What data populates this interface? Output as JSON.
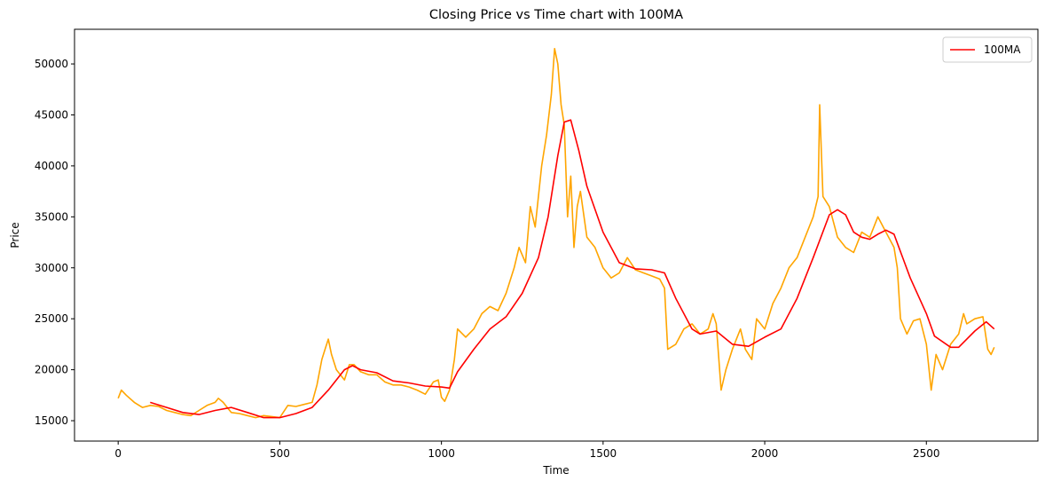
{
  "chart_data": {
    "type": "line",
    "title": "Closing Price vs Time chart with 100MA",
    "xlabel": "Time",
    "ylabel": "Price",
    "xlim": [
      -135,
      2845
    ],
    "ylim": [
      13000,
      53400
    ],
    "xticks": [
      0,
      500,
      1000,
      1500,
      2000,
      2500
    ],
    "yticks": [
      15000,
      20000,
      25000,
      30000,
      35000,
      40000,
      45000,
      50000
    ],
    "grid": false,
    "legend": "upper right",
    "series": [
      {
        "color": "#ffa500",
        "x": [
          0,
          10,
          25,
          50,
          75,
          100,
          125,
          150,
          175,
          200,
          225,
          250,
          275,
          300,
          310,
          325,
          350,
          375,
          400,
          425,
          450,
          475,
          500,
          525,
          550,
          575,
          600,
          615,
          630,
          640,
          650,
          660,
          675,
          700,
          715,
          730,
          750,
          775,
          800,
          825,
          850,
          875,
          900,
          925,
          950,
          975,
          990,
          1000,
          1010,
          1025,
          1040,
          1050,
          1075,
          1100,
          1125,
          1150,
          1175,
          1200,
          1225,
          1240,
          1260,
          1275,
          1290,
          1310,
          1325,
          1340,
          1350,
          1360,
          1370,
          1380,
          1390,
          1400,
          1410,
          1420,
          1430,
          1450,
          1475,
          1500,
          1525,
          1550,
          1575,
          1600,
          1625,
          1650,
          1675,
          1690,
          1700,
          1725,
          1750,
          1775,
          1800,
          1825,
          1840,
          1850,
          1865,
          1880,
          1900,
          1925,
          1940,
          1960,
          1975,
          2000,
          2025,
          2050,
          2075,
          2100,
          2125,
          2150,
          2165,
          2170,
          2180,
          2200,
          2225,
          2250,
          2275,
          2300,
          2325,
          2350,
          2375,
          2400,
          2410,
          2420,
          2440,
          2460,
          2480,
          2500,
          2515,
          2530,
          2550,
          2575,
          2600,
          2615,
          2625,
          2650,
          2675,
          2690,
          2700,
          2710
        ],
        "values": [
          17200,
          18000,
          17500,
          16800,
          16300,
          16500,
          16400,
          16000,
          15800,
          15600,
          15500,
          16000,
          16500,
          16800,
          17200,
          16800,
          15800,
          15700,
          15500,
          15300,
          15500,
          15400,
          15300,
          16500,
          16400,
          16600,
          16800,
          18500,
          21000,
          22000,
          23000,
          21500,
          20000,
          19000,
          20500,
          20500,
          19800,
          19500,
          19500,
          18800,
          18500,
          18500,
          18300,
          18000,
          17600,
          18800,
          19000,
          17300,
          16900,
          18000,
          21000,
          24000,
          23200,
          24000,
          25500,
          26200,
          25800,
          27500,
          30000,
          32000,
          30500,
          36000,
          34000,
          40000,
          43000,
          47000,
          51500,
          50000,
          46000,
          44000,
          35000,
          39000,
          32000,
          36000,
          37500,
          33000,
          32000,
          30000,
          29000,
          29500,
          31000,
          29800,
          29500,
          29200,
          28900,
          28000,
          22000,
          22500,
          24000,
          24500,
          23500,
          24000,
          25500,
          24500,
          18000,
          20000,
          22000,
          24000,
          22000,
          21000,
          25000,
          24000,
          26500,
          28000,
          30000,
          31000,
          33000,
          35000,
          37000,
          46000,
          37000,
          36000,
          33000,
          32000,
          31500,
          33500,
          33000,
          35000,
          33500,
          32000,
          30000,
          25000,
          23500,
          24800,
          25000,
          22500,
          18000,
          21500,
          20000,
          22500,
          23500,
          25500,
          24500,
          25000,
          25200,
          22000,
          21500,
          22200
        ]
      },
      {
        "name": "100MA",
        "color": "#ff0000",
        "x": [
          99,
          150,
          200,
          250,
          300,
          350,
          400,
          450,
          500,
          550,
          600,
          650,
          700,
          725,
          750,
          800,
          850,
          900,
          950,
          1000,
          1025,
          1050,
          1100,
          1150,
          1200,
          1250,
          1300,
          1330,
          1360,
          1380,
          1400,
          1425,
          1450,
          1500,
          1550,
          1600,
          1650,
          1690,
          1725,
          1775,
          1800,
          1850,
          1900,
          1950,
          2000,
          2050,
          2100,
          2150,
          2200,
          2225,
          2250,
          2275,
          2300,
          2325,
          2350,
          2375,
          2400,
          2450,
          2500,
          2525,
          2575,
          2600,
          2650,
          2685,
          2710
        ],
        "values": [
          16800,
          16300,
          15800,
          15600,
          16000,
          16300,
          15800,
          15300,
          15300,
          15700,
          16300,
          18000,
          20000,
          20400,
          20000,
          19700,
          18900,
          18700,
          18400,
          18300,
          18200,
          19800,
          22000,
          24000,
          25200,
          27500,
          31000,
          35000,
          41000,
          44300,
          44500,
          41500,
          38000,
          33500,
          30500,
          29900,
          29800,
          29500,
          27000,
          24000,
          23500,
          23800,
          22500,
          22300,
          23200,
          24000,
          27000,
          31000,
          35200,
          35700,
          35200,
          33500,
          33000,
          32800,
          33300,
          33700,
          33300,
          29000,
          25500,
          23300,
          22200,
          22200,
          23800,
          24700,
          24000
        ]
      }
    ]
  }
}
